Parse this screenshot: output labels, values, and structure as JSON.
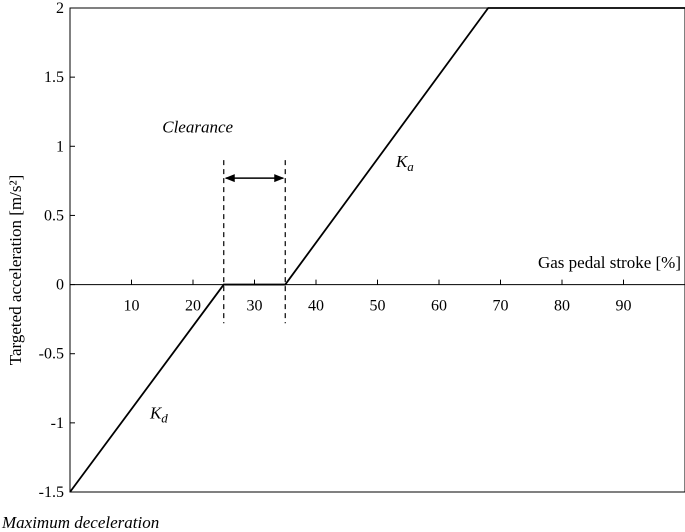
{
  "chart_data": {
    "type": "line",
    "title": "",
    "xlabel": "Gas pedal stroke [%]",
    "ylabel": "Targeted acceleration [m/s²]",
    "xlim": [
      0,
      100
    ],
    "ylim": [
      -1.5,
      2
    ],
    "grid": false,
    "x_ticks": [
      10,
      20,
      30,
      40,
      50,
      60,
      70,
      80,
      90
    ],
    "y_ticks": [
      2,
      1.5,
      1,
      0.5,
      0,
      -0.5,
      -1,
      -1.5
    ],
    "y_tick_labels": [
      "2",
      "1.5",
      "1",
      "0.5",
      "0",
      "-0.5",
      "-1",
      "-1.5"
    ],
    "series": [
      {
        "x": [
          0,
          25,
          35,
          68,
          100
        ],
        "y": [
          -1.5,
          0,
          0,
          2,
          2
        ]
      }
    ],
    "clearance": {
      "x_start": 25,
      "x_end": 35,
      "y_top": 0.9,
      "y_bottom": -0.28,
      "arrow_y": 0.77,
      "label": "Clearance",
      "label_x": 15,
      "label_y": 1.1
    },
    "annotations": [
      {
        "text": "K",
        "sub": "a",
        "x": 53,
        "y": 0.85
      },
      {
        "text": "K",
        "sub": "d",
        "x": 13,
        "y": -0.97
      }
    ],
    "footer_label": "Maximum deceleration"
  }
}
